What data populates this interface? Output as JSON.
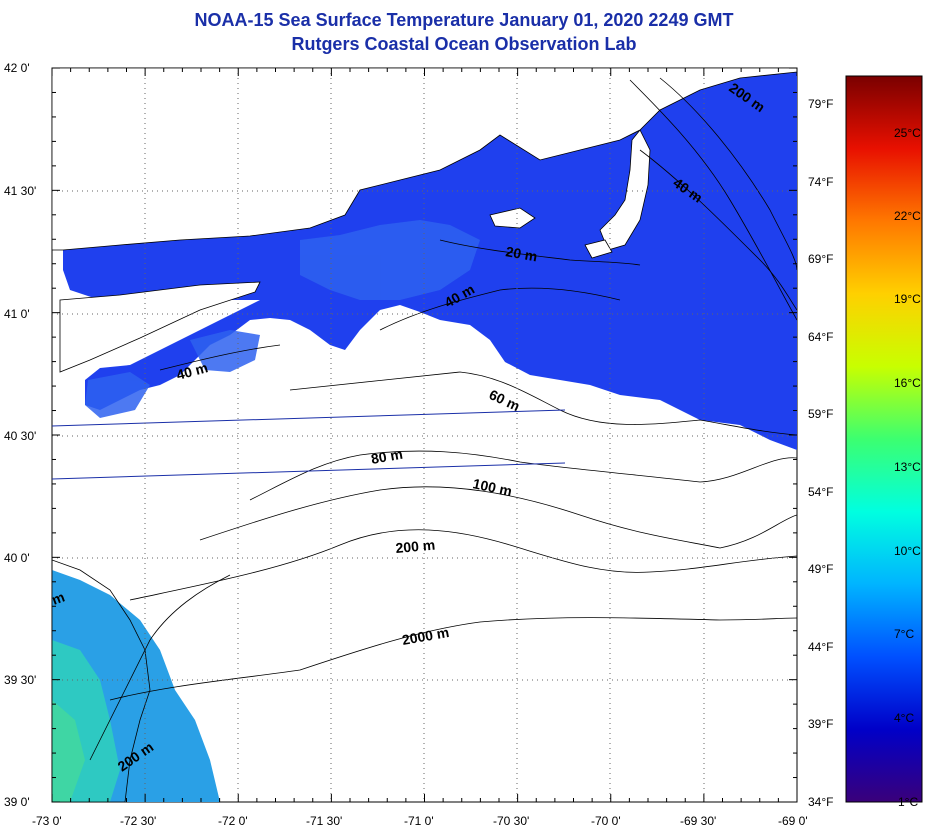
{
  "title_line1": "NOAA-15 Sea Surface Temperature January 01, 2020 2249 GMT",
  "title_line2": "Rutgers Coastal Ocean Observation Lab",
  "lat_labels": [
    "42 0'",
    "41 30'",
    "41 0'",
    "40 30'",
    "40 0'",
    "39 30'",
    "39 0'"
  ],
  "lon_labels": [
    "-73 0'",
    "-72 30'",
    "-72 0'",
    "-71 30'",
    "-71 0'",
    "-70 30'",
    "-70 0'",
    "-69 30'",
    "-69 0'"
  ],
  "fahrenheit_labels": [
    "79°F",
    "74°F",
    "69°F",
    "64°F",
    "59°F",
    "54°F",
    "49°F",
    "44°F",
    "39°F",
    "34°F"
  ],
  "celsius_labels": [
    "25°C",
    "22°C",
    "19°C",
    "16°C",
    "13°C",
    "10°C",
    "7°C",
    "4°C",
    "1°C"
  ],
  "contour_labels": [
    "20 m",
    "40 m",
    "40 m",
    "40 m",
    "60 m",
    "80 m",
    "100 m",
    "200 m",
    "2000 m",
    "200 m",
    "200 m",
    "m"
  ],
  "colors": {
    "title": "#1a2fa8",
    "cold_water": "#1a3cf0",
    "mid_water": "#2b6ef2",
    "warm_water": "#27c6c8",
    "land": "#ffffff"
  },
  "colorbar_stops": [
    "#3a007a",
    "#0000c8",
    "#0050ff",
    "#00b4ff",
    "#00ffe0",
    "#3cff70",
    "#c8ff00",
    "#ffd000",
    "#ff7800",
    "#e81000",
    "#7a0000"
  ]
}
